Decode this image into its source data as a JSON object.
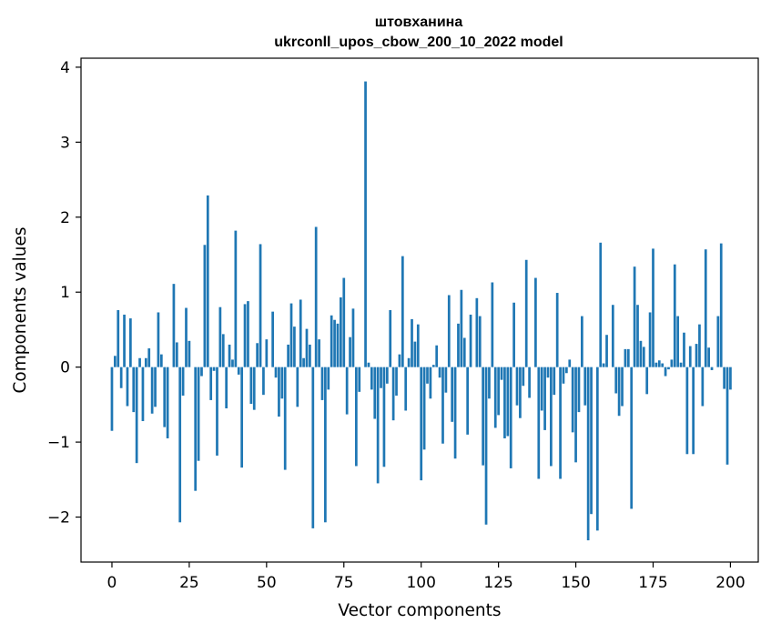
{
  "chart_data": {
    "type": "bar",
    "title": "штовханина",
    "subtitle": "ukrconll_upos_cbow_200_10_2022 model",
    "xlabel": "Vector components",
    "ylabel": "Components values",
    "xlim": [
      -10,
      209
    ],
    "ylim": [
      -2.6,
      4.12
    ],
    "xticks": [
      0,
      25,
      50,
      75,
      100,
      125,
      150,
      175,
      200
    ],
    "yticks": [
      -2,
      -1,
      0,
      1,
      2,
      3,
      4
    ],
    "ytick_labels": [
      "−2",
      "−1",
      "0",
      "1",
      "2",
      "3",
      "4"
    ],
    "bar_color": "#1f77b4",
    "grid": false,
    "values": [
      -0.85,
      0.15,
      0.76,
      -0.28,
      0.7,
      -0.52,
      0.65,
      -0.6,
      -1.28,
      0.12,
      -0.72,
      0.12,
      0.25,
      -0.62,
      -0.53,
      0.73,
      0.17,
      -0.8,
      -0.95,
      0.0,
      1.11,
      0.33,
      -2.07,
      -0.38,
      0.79,
      0.35,
      0.0,
      -1.65,
      -1.25,
      -0.12,
      1.63,
      2.29,
      -0.44,
      -0.05,
      -1.18,
      0.8,
      0.44,
      -0.55,
      0.3,
      0.1,
      1.82,
      -0.1,
      -1.34,
      0.84,
      0.88,
      -0.49,
      -0.57,
      0.32,
      1.64,
      -0.37,
      0.37,
      0.0,
      0.74,
      -0.14,
      -0.66,
      -0.42,
      -1.37,
      0.3,
      0.85,
      0.54,
      -0.53,
      0.9,
      0.12,
      0.51,
      0.3,
      -2.15,
      1.87,
      0.37,
      -0.44,
      -2.07,
      -0.3,
      0.69,
      0.63,
      0.58,
      0.93,
      1.19,
      -0.63,
      0.4,
      0.78,
      -1.32,
      -0.33,
      0.0,
      3.81,
      0.06,
      -0.3,
      -0.69,
      -1.55,
      -0.28,
      -1.33,
      -0.22,
      0.76,
      -0.71,
      -0.38,
      0.17,
      1.48,
      -0.58,
      0.12,
      0.64,
      0.34,
      0.57,
      -1.51,
      -1.1,
      -0.22,
      -0.42,
      0.03,
      0.29,
      -0.14,
      -1.02,
      -0.34,
      0.96,
      -0.73,
      -1.22,
      0.58,
      1.03,
      0.39,
      -0.9,
      0.7,
      0.0,
      0.92,
      0.68,
      -1.31,
      -2.1,
      -0.42,
      1.13,
      -0.81,
      -0.64,
      -0.17,
      -0.95,
      -0.92,
      -1.35,
      0.86,
      -0.51,
      -0.68,
      -0.25,
      1.43,
      -0.41,
      0.0,
      1.19,
      -1.49,
      -0.58,
      -0.84,
      -0.14,
      -1.32,
      -0.37,
      0.99,
      -1.49,
      -0.22,
      -0.08,
      0.1,
      -0.87,
      -1.27,
      -0.6,
      0.68,
      -0.51,
      -2.31,
      -1.96,
      0.0,
      -2.18,
      1.66,
      0.05,
      0.43,
      0.0,
      0.83,
      -0.35,
      -0.65,
      -0.52,
      0.24,
      0.24,
      -1.89,
      1.34,
      0.83,
      0.35,
      0.27,
      -0.36,
      0.73,
      1.58,
      0.06,
      0.09,
      0.05,
      -0.12,
      -0.03,
      0.1,
      1.37,
      0.68,
      0.06,
      0.46,
      -1.16,
      0.28,
      -1.16,
      0.31,
      0.57,
      -0.52,
      1.57,
      0.26,
      -0.04,
      0.0,
      0.68,
      1.65,
      -0.29,
      -1.3,
      -0.3
    ]
  }
}
